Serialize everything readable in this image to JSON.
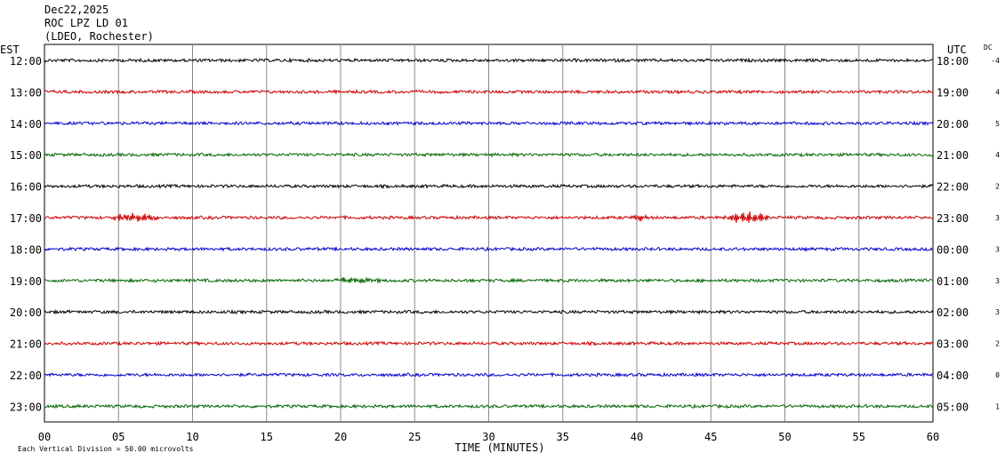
{
  "header": {
    "date": "Dec22,2025",
    "station": "ROC LPZ LD 01",
    "network": "(LDEO, Rochester)"
  },
  "chart_data": {
    "type": "line",
    "title": "ROC LPZ LD 01",
    "xlabel": "TIME (MINUTES)",
    "x_ticks": [
      "00",
      "05",
      "10",
      "15",
      "20",
      "25",
      "30",
      "35",
      "40",
      "45",
      "50",
      "55",
      "60"
    ],
    "xlim": [
      0,
      60
    ],
    "grid": true,
    "left_axis_label": "EST",
    "right_axis_label": "UTC",
    "dc_label": "DC",
    "scale_note": "Each Vertical Division =   50.00 microvolts",
    "colors": [
      "#000000",
      "#cc0000",
      "#0000cc",
      "#006600"
    ],
    "rows": [
      {
        "est": "12:00",
        "utc": "18:00",
        "dc": "-4",
        "color": "#000000"
      },
      {
        "est": "13:00",
        "utc": "19:00",
        "dc": "4",
        "color": "#cc0000"
      },
      {
        "est": "14:00",
        "utc": "20:00",
        "dc": "5",
        "color": "#0000cc"
      },
      {
        "est": "15:00",
        "utc": "21:00",
        "dc": "4",
        "color": "#006600"
      },
      {
        "est": "16:00",
        "utc": "22:00",
        "dc": "2",
        "color": "#000000"
      },
      {
        "est": "17:00",
        "utc": "23:00",
        "dc": "3",
        "color": "#cc0000",
        "events": [
          {
            "start_min": 4.2,
            "end_min": 8.0,
            "amp": 4
          },
          {
            "start_min": 39.5,
            "end_min": 41.0,
            "amp": 3
          },
          {
            "start_min": 45.8,
            "end_min": 49.0,
            "amp": 6
          }
        ]
      },
      {
        "est": "18:00",
        "utc": "00:00",
        "dc": "3",
        "color": "#0000cc"
      },
      {
        "est": "19:00",
        "utc": "01:00",
        "dc": "3",
        "color": "#006600",
        "events": [
          {
            "start_min": 19.0,
            "end_min": 23.0,
            "amp": 2.5
          }
        ]
      },
      {
        "est": "20:00",
        "utc": "02:00",
        "dc": "3",
        "color": "#000000"
      },
      {
        "est": "21:00",
        "utc": "03:00",
        "dc": "2",
        "color": "#cc0000"
      },
      {
        "est": "22:00",
        "utc": "04:00",
        "dc": "0",
        "color": "#0000cc"
      },
      {
        "est": "23:00",
        "utc": "05:00",
        "dc": "1",
        "color": "#006600"
      }
    ]
  }
}
